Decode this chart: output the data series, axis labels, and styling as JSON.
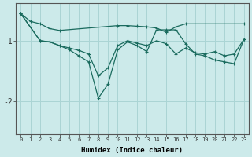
{
  "xlabel": "Humidex (Indice chaleur)",
  "bg_color": "#cceaea",
  "grid_color": "#aad4d4",
  "line_color": "#1a6b5e",
  "x_ticks": [
    0,
    1,
    2,
    3,
    4,
    5,
    6,
    7,
    8,
    9,
    10,
    11,
    12,
    13,
    14,
    15,
    16,
    17,
    18,
    19,
    20,
    21,
    22,
    23
  ],
  "ylim": [
    -2.55,
    -0.38
  ],
  "yticks": [
    -2,
    -1
  ],
  "series1": {
    "x": [
      0,
      1,
      2,
      3,
      4,
      10,
      11,
      12,
      13,
      14,
      15,
      16,
      17,
      23
    ],
    "y": [
      -0.55,
      -0.68,
      -0.72,
      -0.8,
      -0.83,
      -0.75,
      -0.75,
      -0.76,
      -0.77,
      -0.79,
      -0.86,
      -0.77,
      -0.72,
      -0.72
    ]
  },
  "series2": {
    "x": [
      0,
      2,
      3,
      4,
      5,
      6,
      7,
      8,
      9,
      10,
      11,
      12,
      13,
      14,
      15,
      16,
      17,
      18,
      19,
      20,
      21,
      22,
      23
    ],
    "y": [
      -0.55,
      -1.0,
      -1.02,
      -1.08,
      -1.12,
      -1.16,
      -1.22,
      -1.58,
      -1.45,
      -1.08,
      -1.0,
      -1.04,
      -1.08,
      -1.0,
      -1.05,
      -1.22,
      -1.12,
      -1.2,
      -1.22,
      -1.18,
      -1.25,
      -1.22,
      -0.98
    ]
  },
  "series3": {
    "x": [
      0,
      2,
      3,
      4,
      5,
      6,
      7,
      8,
      9,
      10,
      11,
      12,
      13,
      14,
      15,
      16,
      17,
      18,
      19,
      20,
      21,
      22,
      23
    ],
    "y": [
      -0.55,
      -1.0,
      -1.02,
      -1.08,
      -1.15,
      -1.25,
      -1.35,
      -1.95,
      -1.72,
      -1.15,
      -1.02,
      -1.08,
      -1.18,
      -0.82,
      -0.82,
      -0.82,
      -1.05,
      -1.22,
      -1.25,
      -1.32,
      -1.35,
      -1.38,
      -0.98
    ]
  }
}
